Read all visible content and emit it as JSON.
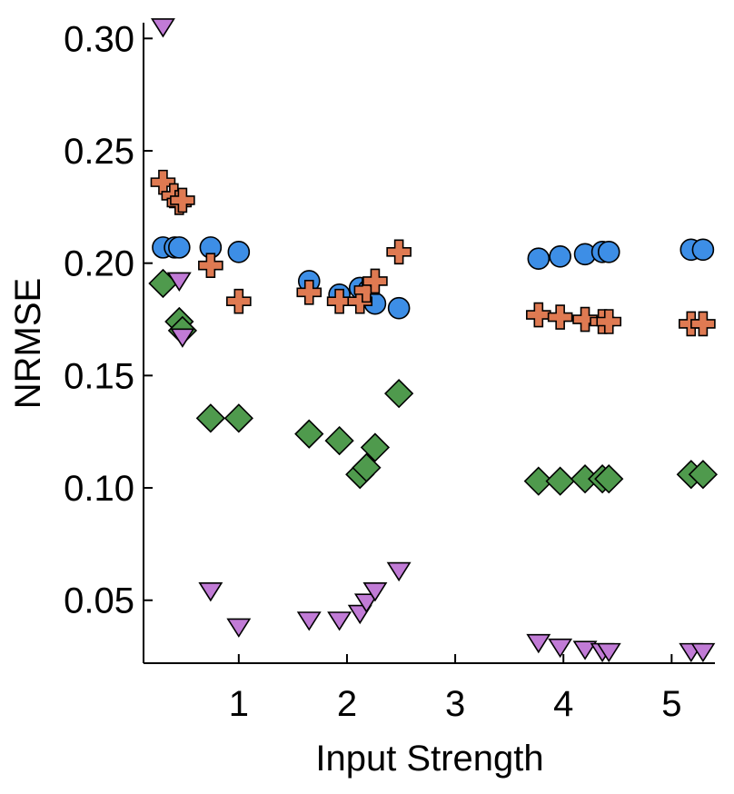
{
  "chart_data": {
    "type": "scatter",
    "title": "",
    "xlabel": "Input Strength",
    "ylabel": "NRMSE",
    "xlim": [
      0.12,
      5.4
    ],
    "ylim": [
      0.022,
      0.307
    ],
    "xticks": [
      "1",
      "2",
      "3",
      "4",
      "5"
    ],
    "yticks": [
      "0.30",
      "0.25",
      "0.20",
      "0.15",
      "0.10",
      "0.05"
    ],
    "grid": false,
    "legend": "none",
    "colors": {
      "circle": "#3d8ee6",
      "plus": "#df7a52",
      "diamond": "#4f9a4d",
      "triangle": "#c17bd6"
    },
    "series": [
      {
        "name": "circle",
        "marker": "circle",
        "x": [
          0.3,
          0.41,
          0.45,
          0.74,
          1.0,
          1.65,
          1.93,
          2.12,
          2.2,
          2.26,
          2.48,
          3.77,
          3.97,
          4.2,
          4.36,
          4.42,
          5.18,
          5.29
        ],
        "y": [
          0.207,
          0.207,
          0.207,
          0.207,
          0.205,
          0.192,
          0.186,
          0.189,
          0.188,
          0.182,
          0.18,
          0.202,
          0.203,
          0.204,
          0.205,
          0.205,
          0.206,
          0.206
        ]
      },
      {
        "name": "plus",
        "marker": "plus",
        "x": [
          0.3,
          0.4,
          0.45,
          0.48,
          0.74,
          1.0,
          1.65,
          1.93,
          2.12,
          2.18,
          2.26,
          2.48,
          3.77,
          3.97,
          4.2,
          4.36,
          4.42,
          5.18,
          5.29
        ],
        "y": [
          0.236,
          0.23,
          0.227,
          0.228,
          0.199,
          0.183,
          0.187,
          0.183,
          0.183,
          0.188,
          0.192,
          0.205,
          0.177,
          0.176,
          0.175,
          0.174,
          0.174,
          0.173,
          0.173
        ]
      },
      {
        "name": "diamond",
        "marker": "diamond",
        "x": [
          0.3,
          0.45,
          0.48,
          0.74,
          1.0,
          1.65,
          1.93,
          2.12,
          2.18,
          2.26,
          2.48,
          3.77,
          3.97,
          4.2,
          4.36,
          4.42,
          5.18,
          5.29
        ],
        "y": [
          0.191,
          0.174,
          0.17,
          0.131,
          0.131,
          0.124,
          0.121,
          0.106,
          0.109,
          0.118,
          0.142,
          0.103,
          0.103,
          0.104,
          0.104,
          0.104,
          0.106,
          0.106
        ]
      },
      {
        "name": "triangle",
        "marker": "triangle",
        "x": [
          0.3,
          0.45,
          0.48,
          0.74,
          1.0,
          1.65,
          1.93,
          2.12,
          2.18,
          2.26,
          2.48,
          3.77,
          3.97,
          4.2,
          4.36,
          4.42,
          5.18,
          5.29
        ],
        "y": [
          0.305,
          0.192,
          0.167,
          0.054,
          0.038,
          0.041,
          0.041,
          0.044,
          0.049,
          0.054,
          0.063,
          0.031,
          0.029,
          0.028,
          0.027,
          0.027,
          0.027,
          0.027
        ]
      }
    ]
  }
}
